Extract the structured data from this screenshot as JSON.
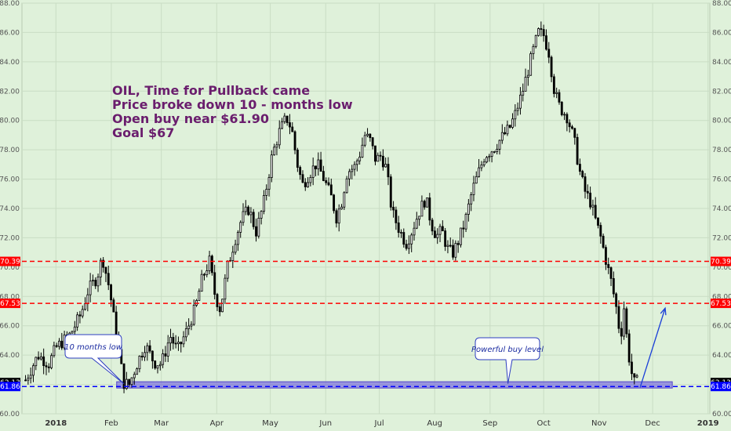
{
  "chart_data": {
    "type": "candlestick",
    "title": "",
    "ylim": [
      60,
      88
    ],
    "y_ticks": [
      "60.00",
      "62.00",
      "64.00",
      "66.00",
      "68.00",
      "70.00",
      "72.00",
      "74.00",
      "76.00",
      "78.00",
      "80.00",
      "82.00",
      "84.00",
      "86.00",
      "88.00"
    ],
    "x_ticks": [
      {
        "label": "2018",
        "t": 0
      },
      {
        "label": "Feb",
        "t": 31
      },
      {
        "label": "Mar",
        "t": 59
      },
      {
        "label": "Apr",
        "t": 90
      },
      {
        "label": "May",
        "t": 120
      },
      {
        "label": "Jun",
        "t": 151
      },
      {
        "label": "Jul",
        "t": 181
      },
      {
        "label": "Aug",
        "t": 212
      },
      {
        "label": "Sep",
        "t": 243
      },
      {
        "label": "Oct",
        "t": 273
      },
      {
        "label": "Nov",
        "t": 304
      },
      {
        "label": "Dec",
        "t": 334
      },
      {
        "label": "2019",
        "t": 365
      }
    ],
    "x_range": [
      -19,
      366
    ],
    "price_path": [
      [
        -17,
        62.3
      ],
      [
        -10,
        64.0
      ],
      [
        -4,
        63.4
      ],
      [
        0,
        64.5
      ],
      [
        8,
        65.4
      ],
      [
        14,
        66.8
      ],
      [
        18,
        68.4
      ],
      [
        23,
        69.3
      ],
      [
        26,
        70.7
      ],
      [
        30,
        68.5
      ],
      [
        33,
        66.0
      ],
      [
        36,
        63.6
      ],
      [
        38,
        62.1
      ],
      [
        41,
        62.0
      ],
      [
        46,
        63.6
      ],
      [
        50,
        64.7
      ],
      [
        55,
        63.5
      ],
      [
        59,
        63.4
      ],
      [
        64,
        65.3
      ],
      [
        68,
        64.3
      ],
      [
        73,
        65.6
      ],
      [
        78,
        67.2
      ],
      [
        82,
        69.3
      ],
      [
        86,
        70.4
      ],
      [
        89,
        68.1
      ],
      [
        92,
        67.1
      ],
      [
        96,
        70.0
      ],
      [
        100,
        71.8
      ],
      [
        104,
        73.3
      ],
      [
        108,
        74.0
      ],
      [
        112,
        72.4
      ],
      [
        116,
        74.2
      ],
      [
        121,
        77.6
      ],
      [
        125,
        79.2
      ],
      [
        129,
        80.2
      ],
      [
        132,
        79.4
      ],
      [
        135,
        77.1
      ],
      [
        138,
        75.6
      ],
      [
        142,
        76.4
      ],
      [
        146,
        77.1
      ],
      [
        150,
        76.0
      ],
      [
        154,
        74.8
      ],
      [
        157,
        73.4
      ],
      [
        160,
        74.5
      ],
      [
        163,
        76.5
      ],
      [
        167,
        76.8
      ],
      [
        170,
        77.7
      ],
      [
        173,
        79.0
      ],
      [
        176,
        78.6
      ],
      [
        179,
        77.3
      ],
      [
        182,
        77.6
      ],
      [
        185,
        76.7
      ],
      [
        188,
        73.8
      ],
      [
        192,
        72.6
      ],
      [
        196,
        71.6
      ],
      [
        199,
        72.4
      ],
      [
        203,
        73.7
      ],
      [
        207,
        74.7
      ],
      [
        210,
        73.0
      ],
      [
        213,
        72.1
      ],
      [
        216,
        72.5
      ],
      [
        219,
        71.3
      ],
      [
        222,
        70.9
      ],
      [
        225,
        71.7
      ],
      [
        229,
        73.1
      ],
      [
        233,
        75.2
      ],
      [
        237,
        76.6
      ],
      [
        240,
        77.6
      ],
      [
        245,
        78.1
      ],
      [
        250,
        78.9
      ],
      [
        254,
        79.5
      ],
      [
        257,
        80.4
      ],
      [
        261,
        81.9
      ],
      [
        264,
        83.3
      ],
      [
        267,
        84.7
      ],
      [
        270,
        86.0
      ],
      [
        273,
        85.8
      ],
      [
        276,
        84.6
      ],
      [
        279,
        82.0
      ],
      [
        282,
        80.9
      ],
      [
        286,
        80.3
      ],
      [
        290,
        78.7
      ],
      [
        293,
        76.6
      ],
      [
        296,
        75.2
      ],
      [
        299,
        74.5
      ],
      [
        302,
        73.2
      ],
      [
        305,
        72.0
      ],
      [
        308,
        70.4
      ],
      [
        311,
        68.9
      ],
      [
        314,
        67.0
      ],
      [
        316,
        65.1
      ],
      [
        318,
        67.3
      ],
      [
        320,
        64.5
      ],
      [
        322,
        62.9
      ],
      [
        324,
        62.0
      ],
      [
        326,
        62.3
      ]
    ],
    "horizontal_lines": [
      {
        "value": 70.39,
        "label": "70.39",
        "color": "#ff0000",
        "style": "dashed"
      },
      {
        "value": 67.53,
        "label": "67.53",
        "color": "#ff0000",
        "style": "dashed"
      },
      {
        "value": 61.86,
        "label": "61.86",
        "color": "#0000ff",
        "style": "dashed"
      }
    ],
    "price_tags": [
      {
        "value": 70.39,
        "label": "70.39",
        "color": "#ff0000"
      },
      {
        "value": 67.53,
        "label": "67.53",
        "color": "#ff0000"
      },
      {
        "value": 62.13,
        "label": "62.13",
        "color": "#000000"
      },
      {
        "value": 61.86,
        "label": "61.86",
        "color": "#0000ff"
      }
    ],
    "support_zone": {
      "from": 61.86,
      "to": 62.13,
      "t_start": 34,
      "t_end": 345,
      "color": "#7a6fe0"
    },
    "annotation_lines": [
      "OIL, Time for Pullback came",
      "Price broke down 10 - months low",
      "Open buy near $61.90",
      "Goal $67"
    ],
    "callouts": [
      {
        "text": "10 months low",
        "at_t": 38
      },
      {
        "text": "Powerful buy level",
        "at_t": 253
      }
    ],
    "arrow": {
      "from": [
        327,
        61.8
      ],
      "to": [
        341,
        67.2
      ],
      "color": "#1a3fd8"
    },
    "colors": {
      "background": "#dff1da",
      "candle_up": "#ffffff",
      "candle_down": "#000000",
      "grid": "#c9ddc4"
    }
  }
}
